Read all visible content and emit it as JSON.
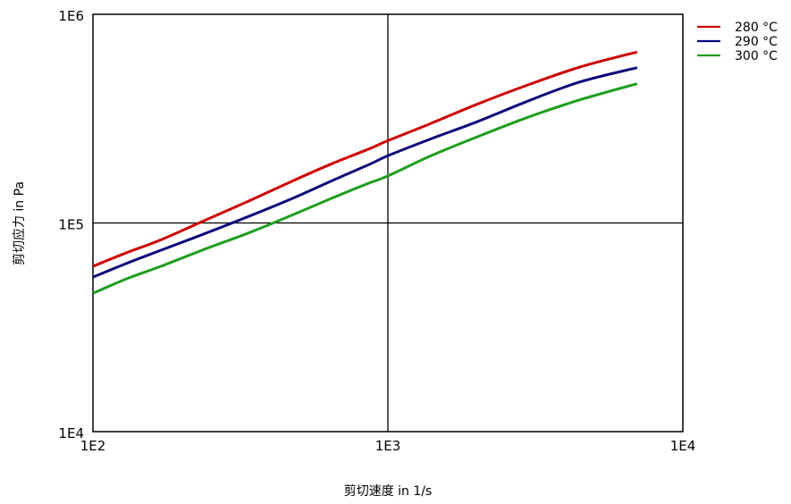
{
  "chart_data": {
    "type": "line",
    "xlabel": "剪切速度 in 1/s",
    "ylabel": "剪切应力 in Pa",
    "x_scale": "log",
    "y_scale": "log",
    "xlim": [
      100,
      10000
    ],
    "ylim": [
      10000,
      1000000
    ],
    "x_ticks": [
      {
        "value": 100,
        "label": "1E2"
      },
      {
        "value": 1000,
        "label": "1E3"
      },
      {
        "value": 10000,
        "label": "1E4"
      }
    ],
    "y_ticks": [
      {
        "value": 10000,
        "label": "1E4"
      },
      {
        "value": 100000,
        "label": "1E5"
      },
      {
        "value": 1000000,
        "label": "1E6"
      }
    ],
    "grid": "major",
    "legend_position": "outside-top-right",
    "series": [
      {
        "name": "280 °C",
        "color": "#cc0000",
        "points": [
          [
            100,
            62000
          ],
          [
            130,
            72000
          ],
          [
            170,
            83000
          ],
          [
            240,
            103000
          ],
          [
            340,
            128000
          ],
          [
            480,
            160000
          ],
          [
            650,
            193000
          ],
          [
            860,
            226000
          ],
          [
            1000,
            248000
          ],
          [
            1400,
            300000
          ],
          [
            2000,
            370000
          ],
          [
            3000,
            460000
          ],
          [
            4500,
            560000
          ],
          [
            7000,
            660000
          ]
        ]
      },
      {
        "name": "290 °C",
        "color": "#0a0a7a",
        "points": [
          [
            100,
            55000
          ],
          [
            130,
            64000
          ],
          [
            170,
            74000
          ],
          [
            240,
            89000
          ],
          [
            340,
            108000
          ],
          [
            480,
            132000
          ],
          [
            650,
            160000
          ],
          [
            860,
            190000
          ],
          [
            1000,
            210000
          ],
          [
            1400,
            253000
          ],
          [
            2000,
            305000
          ],
          [
            3000,
            385000
          ],
          [
            4500,
            475000
          ],
          [
            7000,
            555000
          ]
        ]
      },
      {
        "name": "300 °C",
        "color": "#1f9e1f",
        "points": [
          [
            100,
            46000
          ],
          [
            130,
            54000
          ],
          [
            170,
            62000
          ],
          [
            240,
            75000
          ],
          [
            340,
            90000
          ],
          [
            480,
            110000
          ],
          [
            650,
            132000
          ],
          [
            860,
            155000
          ],
          [
            1000,
            168000
          ],
          [
            1400,
            210000
          ],
          [
            2000,
            258000
          ],
          [
            3000,
            322000
          ],
          [
            4500,
            390000
          ],
          [
            7000,
            465000
          ]
        ]
      }
    ]
  }
}
